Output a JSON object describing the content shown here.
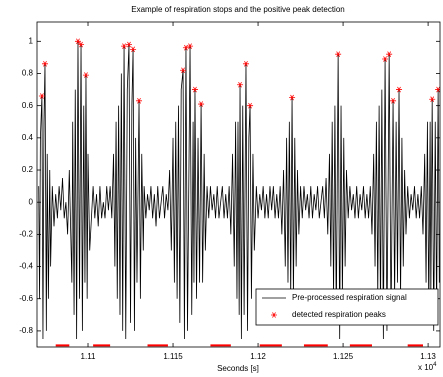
{
  "chart_data": {
    "type": "line",
    "title": "Example of respiration stops and the positive peak detection",
    "xlabel": "Seconds [s]",
    "x_multiplier": {
      "base": "x 10",
      "exponent": "4"
    },
    "xlim": [
      1.107,
      1.1307
    ],
    "ylim": [
      -0.9,
      1.12
    ],
    "xticks": [
      1.11,
      1.115,
      1.12,
      1.125,
      1.13
    ],
    "yticks": [
      -0.8,
      -0.6,
      -0.4,
      -0.2,
      0,
      0.2,
      0.4,
      0.6,
      0.8,
      1
    ],
    "grid": false,
    "legend": "lower right",
    "series": [
      {
        "name": "Pre-processed respiration signal",
        "color": "#000000",
        "type": "line",
        "x": [
          1.1071,
          1.10715,
          1.1072,
          1.10729,
          1.10735,
          1.10741,
          1.10747,
          1.10755,
          1.1076,
          1.10767,
          1.10775,
          1.1078,
          1.1079,
          1.108,
          1.1081,
          1.1082,
          1.1083,
          1.1084,
          1.1085,
          1.1086,
          1.1087,
          1.1088,
          1.1089,
          1.10905,
          1.1091,
          1.10918,
          1.10925,
          1.10933,
          1.10941,
          1.1095,
          1.10959,
          1.10967,
          1.10975,
          1.10982,
          1.10988,
          1.10995,
          1.11,
          1.1101,
          1.1103,
          1.1104,
          1.1105,
          1.1106,
          1.1107,
          1.1108,
          1.1109,
          1.111,
          1.1111,
          1.1112,
          1.1113,
          1.1114,
          1.1115,
          1.11158,
          1.11165,
          1.11172,
          1.1118,
          1.11188,
          1.11196,
          1.11204,
          1.11212,
          1.11222,
          1.11231,
          1.11241,
          1.1125,
          1.11258,
          1.11265,
          1.11273,
          1.1128,
          1.11288,
          1.113,
          1.11308,
          1.11316,
          1.11325,
          1.1133,
          1.1134,
          1.1135,
          1.1136,
          1.1137,
          1.1138,
          1.1139,
          1.114,
          1.1141,
          1.1142,
          1.1143,
          1.1144,
          1.1145,
          1.1146,
          1.1147,
          1.1148,
          1.1149,
          1.115,
          1.11508,
          1.11516,
          1.11524,
          1.11532,
          1.1154,
          1.11548,
          1.11559,
          1.11567,
          1.11576,
          1.11585,
          1.116,
          1.1161,
          1.11618,
          1.11623,
          1.11629,
          1.11638,
          1.11647,
          1.11656,
          1.11665,
          1.11674,
          1.11683,
          1.1169,
          1.117,
          1.1171,
          1.1172,
          1.1173,
          1.1174,
          1.1175,
          1.1176,
          1.1177,
          1.1178,
          1.1179,
          1.118,
          1.1181,
          1.1182,
          1.1183,
          1.1184,
          1.1185,
          1.1186,
          1.11868,
          1.11876,
          1.11882,
          1.11889,
          1.11894,
          1.11902,
          1.1191,
          1.11918,
          1.11929,
          1.11938,
          1.11946,
          1.11953,
          1.11961,
          1.1197,
          1.11978,
          1.1199,
          1.12,
          1.1201,
          1.1202,
          1.1203,
          1.1204,
          1.1205,
          1.1206,
          1.1207,
          1.1208,
          1.1209,
          1.121,
          1.1211,
          1.1212,
          1.1213,
          1.1214,
          1.1215,
          1.1216,
          1.12168,
          1.12176,
          1.12184,
          1.12192,
          1.122,
          1.12208,
          1.12216,
          1.12224,
          1.12232,
          1.1224,
          1.1225,
          1.1226,
          1.1227,
          1.1228,
          1.1229,
          1.123,
          1.1231,
          1.1232,
          1.1233,
          1.1234,
          1.1235,
          1.1236,
          1.1237,
          1.1238,
          1.1239,
          1.124,
          1.1241,
          1.1242,
          1.12428,
          1.12436,
          1.12444,
          1.12452,
          1.1246,
          1.12471,
          1.1248,
          1.12488,
          1.12496,
          1.12504,
          1.12512,
          1.1252,
          1.1253,
          1.1254,
          1.1255,
          1.1256,
          1.1257,
          1.1258,
          1.1259,
          1.126,
          1.1261,
          1.1262,
          1.1263,
          1.1264,
          1.1265,
          1.1266,
          1.1267,
          1.1268,
          1.12688,
          1.12696,
          1.12704,
          1.12712,
          1.1272,
          1.12728,
          1.12737,
          1.12747,
          1.12758,
          1.12771,
          1.12782,
          1.12794,
          1.12803,
          1.12812,
          1.1282,
          1.12829,
          1.12838,
          1.12846,
          1.12854,
          1.12862,
          1.1287,
          1.1288,
          1.1289,
          1.129,
          1.1291,
          1.1292,
          1.1293,
          1.1294,
          1.1295,
          1.1296,
          1.1297,
          1.1298,
          1.12988,
          1.12996,
          1.13004,
          1.13012,
          1.13016,
          1.13024,
          1.13033,
          1.13042,
          1.1305,
          1.13059,
          1.13066
        ],
        "values": [
          0.1,
          -0.6,
          0.4,
          0.66,
          -0.85,
          0.5,
          0.86,
          -0.8,
          0.3,
          -0.6,
          0.2,
          -0.4,
          0.1,
          -0.15,
          0.05,
          -0.1,
          0.1,
          -0.05,
          0.15,
          -0.1,
          0,
          -0.2,
          0.2,
          -0.5,
          0.5,
          -0.7,
          0.7,
          -0.85,
          1.0,
          -0.6,
          0.98,
          -0.8,
          0.6,
          -0.5,
          0.79,
          -0.6,
          0.3,
          -0.3,
          0.1,
          -0.1,
          0.05,
          -0.15,
          0.1,
          -0.1,
          0,
          -0.1,
          0.1,
          -0.05,
          0.1,
          -0.1,
          0.3,
          -0.4,
          0.5,
          -0.6,
          0.6,
          -0.7,
          0.8,
          -0.8,
          0.97,
          -0.85,
          0.7,
          0.98,
          -0.75,
          0.6,
          0.95,
          -0.8,
          0.4,
          -0.5,
          0.63,
          -0.6,
          0.3,
          -0.3,
          0.1,
          -0.1,
          0.05,
          -0.05,
          0.1,
          -0.1,
          0.05,
          -0.15,
          0.1,
          -0.1,
          0,
          0.1,
          -0.1,
          0.05,
          -0.05,
          0.2,
          -0.3,
          0.4,
          -0.5,
          0.5,
          -0.6,
          0.6,
          -0.75,
          0.7,
          0.82,
          -0.85,
          0.96,
          -0.8,
          0.97,
          -0.7,
          0.5,
          -0.5,
          0.7,
          -0.6,
          0.4,
          -0.5,
          0.61,
          -0.5,
          0.3,
          -0.3,
          0.1,
          -0.1,
          0.1,
          -0.05,
          0.05,
          -0.1,
          0.1,
          -0.1,
          0,
          0.1,
          -0.1,
          0.05,
          -0.1,
          0.1,
          -0.2,
          0.3,
          -0.4,
          0.5,
          -0.6,
          0.5,
          -0.7,
          0.73,
          -0.85,
          0.6,
          -0.7,
          0.86,
          -0.8,
          0.4,
          0.6,
          -0.6,
          0.3,
          -0.3,
          0.1,
          -0.1,
          0.05,
          -0.05,
          0.1,
          -0.1,
          0.05,
          -0.1,
          0.1,
          -0.05,
          0.1,
          -0.1,
          0.05,
          -0.1,
          0.1,
          -0.2,
          0.2,
          -0.4,
          0.4,
          -0.5,
          0.5,
          -0.6,
          0.65,
          -0.6,
          0.4,
          -0.4,
          0.2,
          -0.2,
          0.1,
          -0.1,
          0.1,
          -0.05,
          0.05,
          -0.1,
          0.1,
          -0.1,
          0.05,
          -0.05,
          0.1,
          -0.1,
          0,
          0.1,
          -0.1,
          0.15,
          -0.2,
          0.3,
          -0.4,
          0.5,
          -0.6,
          0.6,
          -0.75,
          0.92,
          -0.85,
          0.6,
          -0.6,
          0.4,
          -0.4,
          0.2,
          -0.1,
          0.1,
          -0.05,
          0.05,
          -0.1,
          0.1,
          -0.1,
          0.05,
          -0.05,
          0.1,
          -0.1,
          0.05,
          -0.1,
          0.1,
          -0.2,
          0.3,
          -0.4,
          0.5,
          -0.6,
          0.6,
          -0.7,
          0.7,
          -0.85,
          0.89,
          -0.8,
          0.92,
          -0.75,
          0.63,
          -0.6,
          0.5,
          -0.5,
          0.7,
          -0.6,
          0.4,
          -0.4,
          0.2,
          -0.2,
          0.1,
          -0.1,
          0.05,
          -0.05,
          0.1,
          -0.1,
          0.05,
          -0.1,
          0.1,
          -0.2,
          0.3,
          -0.5,
          0.5,
          -0.7,
          0.5,
          -0.6,
          0.64,
          -0.8,
          0.5,
          -0.7,
          0.7,
          -0.5
        ]
      },
      {
        "name": "detected respiration peaks",
        "color": "#ff0000",
        "type": "scatter",
        "x": [
          1.10729,
          1.10747,
          1.10941,
          1.10959,
          1.10988,
          1.11212,
          1.11241,
          1.11265,
          1.113,
          1.11559,
          1.11576,
          1.116,
          1.11629,
          1.11665,
          1.11894,
          1.11929,
          1.11953,
          1.122,
          1.12471,
          1.12747,
          1.12771,
          1.12794,
          1.12829,
          1.13024,
          1.13059
        ],
        "values": [
          0.66,
          0.86,
          1.0,
          0.98,
          0.79,
          0.97,
          0.98,
          0.95,
          0.63,
          0.82,
          0.96,
          0.97,
          0.7,
          0.61,
          0.73,
          0.86,
          0.6,
          0.65,
          0.92,
          0.89,
          0.92,
          0.63,
          0.7,
          0.64,
          0.7
        ]
      }
    ],
    "stop_segments": {
      "color": "#ff0000",
      "y": -0.89,
      "ranges": [
        [
          1.1081,
          1.1089
        ],
        [
          1.1103,
          1.1113
        ],
        [
          1.1135,
          1.1147
        ],
        [
          1.1172,
          1.1184
        ],
        [
          1.1201,
          1.1214
        ],
        [
          1.1227,
          1.1241
        ],
        [
          1.1254,
          1.1267
        ],
        [
          1.1288,
          1.1297
        ]
      ]
    }
  }
}
